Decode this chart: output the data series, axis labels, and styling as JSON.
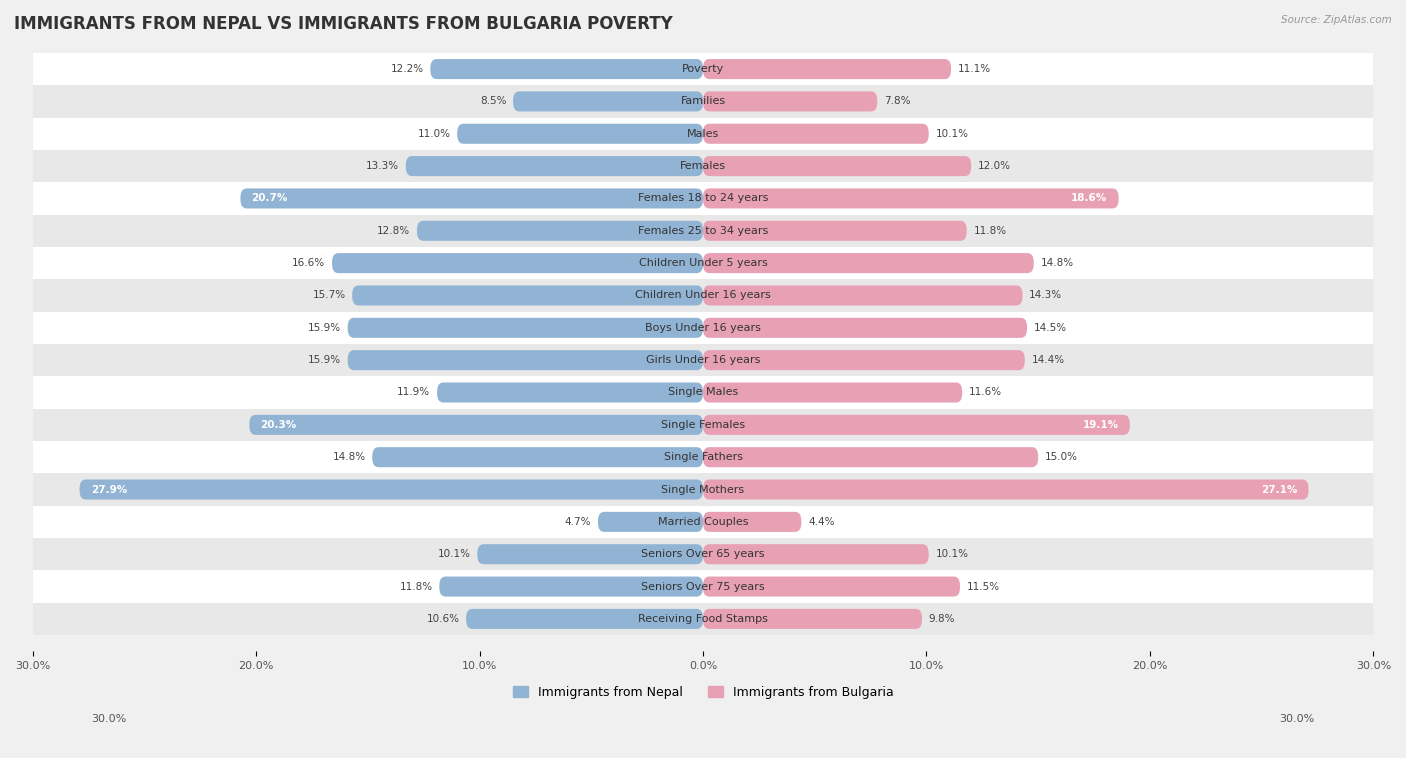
{
  "title": "IMMIGRANTS FROM NEPAL VS IMMIGRANTS FROM BULGARIA POVERTY",
  "source": "Source: ZipAtlas.com",
  "categories": [
    "Poverty",
    "Families",
    "Males",
    "Females",
    "Females 18 to 24 years",
    "Females 25 to 34 years",
    "Children Under 5 years",
    "Children Under 16 years",
    "Boys Under 16 years",
    "Girls Under 16 years",
    "Single Males",
    "Single Females",
    "Single Fathers",
    "Single Mothers",
    "Married Couples",
    "Seniors Over 65 years",
    "Seniors Over 75 years",
    "Receiving Food Stamps"
  ],
  "nepal_values": [
    12.2,
    8.5,
    11.0,
    13.3,
    20.7,
    12.8,
    16.6,
    15.7,
    15.9,
    15.9,
    11.9,
    20.3,
    14.8,
    27.9,
    4.7,
    10.1,
    11.8,
    10.6
  ],
  "bulgaria_values": [
    11.1,
    7.8,
    10.1,
    12.0,
    18.6,
    11.8,
    14.8,
    14.3,
    14.5,
    14.4,
    11.6,
    19.1,
    15.0,
    27.1,
    4.4,
    10.1,
    11.5,
    9.8
  ],
  "nepal_color": "#92b4d4",
  "bulgaria_color": "#e8a0b4",
  "nepal_label": "Immigrants from Nepal",
  "bulgaria_label": "Immigrants from Bulgaria",
  "axis_max": 30.0,
  "background_color": "#f0f0f0",
  "row_color_even": "#ffffff",
  "row_color_odd": "#e8e8e8",
  "title_fontsize": 12,
  "label_fontsize": 8,
  "value_fontsize": 7.5,
  "inside_threshold": 18.0
}
